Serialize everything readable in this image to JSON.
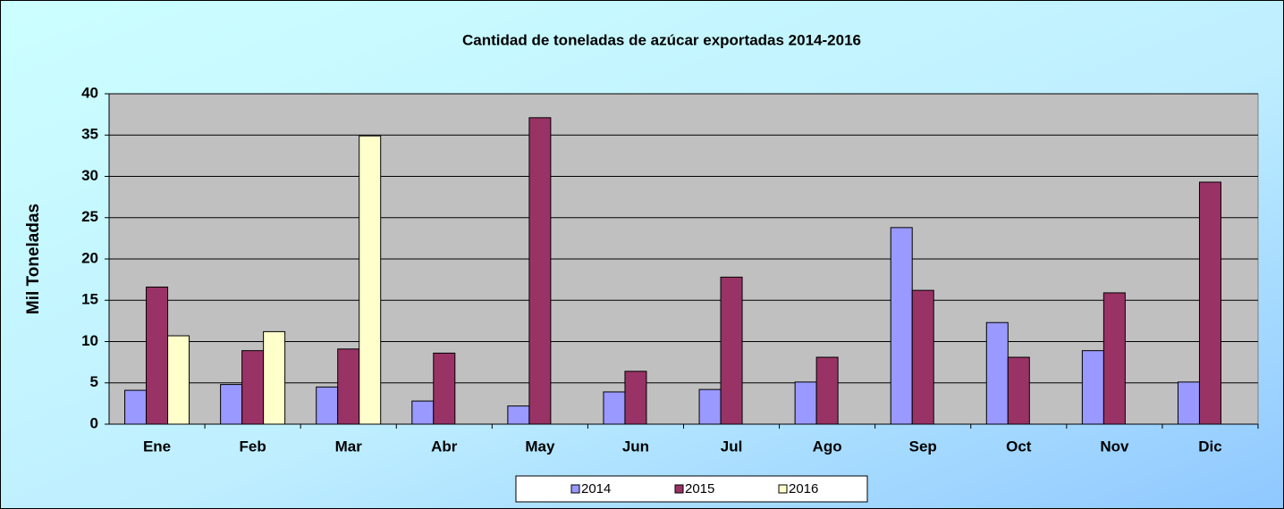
{
  "chart_data": {
    "type": "bar",
    "title": "Cantidad de toneladas de azúcar exportadas 2014-2016",
    "y_label": "Mil Toneladas",
    "categories": [
      "Ene",
      "Feb",
      "Mar",
      "Abr",
      "May",
      "Jun",
      "Jul",
      "Ago",
      "Sep",
      "Oct",
      "Nov",
      "Dic"
    ],
    "series": [
      {
        "name": "2014",
        "color": "#9999ff",
        "values": [
          4.1,
          4.8,
          4.5,
          2.8,
          2.2,
          3.9,
          4.2,
          5.1,
          23.8,
          12.3,
          8.9,
          5.1
        ]
      },
      {
        "name": "2015",
        "color": "#993366",
        "values": [
          16.6,
          8.9,
          9.1,
          8.6,
          37.1,
          6.4,
          17.8,
          8.1,
          16.2,
          8.1,
          15.9,
          29.3
        ]
      },
      {
        "name": "2016",
        "color": "#ffffcc",
        "values": [
          10.7,
          11.2,
          34.9,
          null,
          null,
          null,
          null,
          null,
          null,
          null,
          null,
          null
        ]
      }
    ],
    "ylim": [
      0,
      40
    ],
    "yticks": [
      0,
      5,
      10,
      15,
      20,
      25,
      30,
      35,
      40
    ],
    "grid": true,
    "legend": "bottom"
  }
}
